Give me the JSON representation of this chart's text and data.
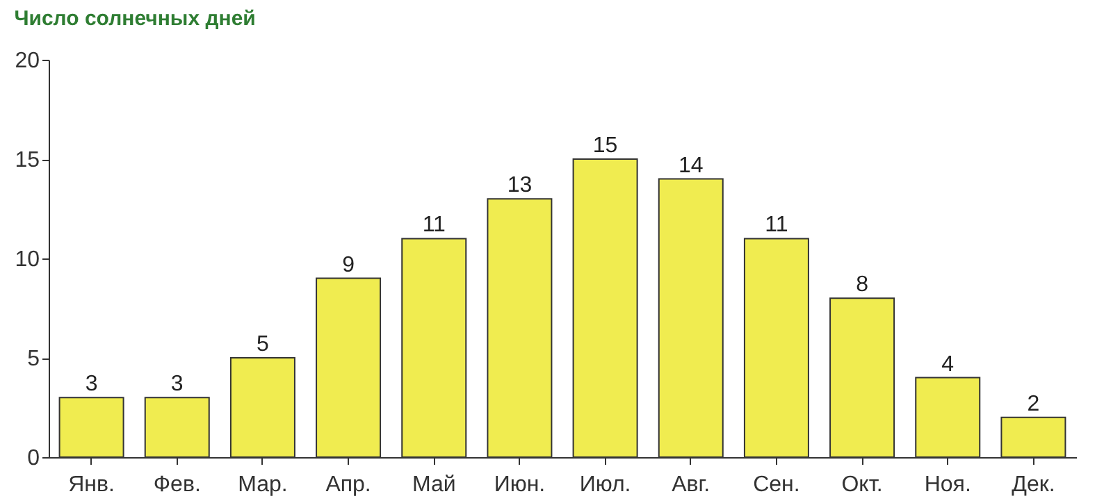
{
  "chart_data": {
    "type": "bar",
    "title": "Число солнечных дней",
    "categories": [
      "Янв.",
      "Фев.",
      "Мар.",
      "Апр.",
      "Май",
      "Июн.",
      "Июл.",
      "Авг.",
      "Сен.",
      "Окт.",
      "Ноя.",
      "Дек."
    ],
    "values": [
      3,
      3,
      5,
      9,
      11,
      13,
      15,
      14,
      11,
      8,
      4,
      2
    ],
    "color": "#f0ec50",
    "ylim": [
      0,
      20
    ],
    "yticks": [
      0,
      5,
      10,
      15,
      20
    ],
    "grid": false,
    "data_labels": true
  }
}
